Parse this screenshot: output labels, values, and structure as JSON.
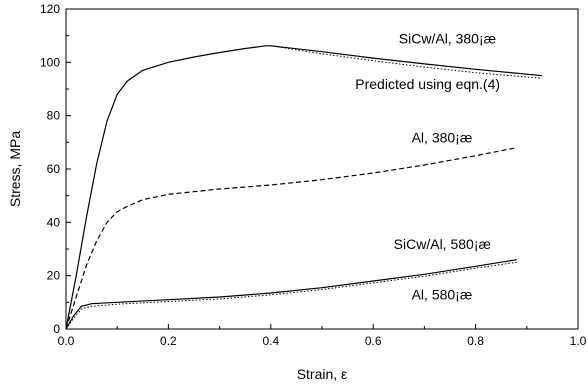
{
  "chart_data": {
    "type": "line",
    "title": "",
    "xlabel": "Strain, ε",
    "ylabel": "Stress, MPa",
    "xlim": [
      0.0,
      1.0
    ],
    "ylim": [
      0,
      120
    ],
    "xticks": [
      0.0,
      0.2,
      0.4,
      0.6,
      0.8,
      1.0
    ],
    "xtick_labels": [
      "0.0",
      "0.2",
      "0.4",
      "0.6",
      "0.8",
      "1.0"
    ],
    "yticks": [
      0,
      20,
      40,
      60,
      80,
      100,
      120
    ],
    "ytick_labels": [
      "0",
      "20",
      "40",
      "60",
      "80",
      "100",
      "120"
    ],
    "grid": false,
    "series": [
      {
        "style": "solid",
        "x": [
          0.0,
          0.02,
          0.04,
          0.06,
          0.08,
          0.1,
          0.12,
          0.15,
          0.2,
          0.25,
          0.3,
          0.35,
          0.39,
          0.4,
          0.5,
          0.6,
          0.7,
          0.8,
          0.93
        ],
        "y": [
          0,
          20,
          42,
          62,
          78,
          88,
          93,
          97,
          100,
          102,
          103.7,
          105.2,
          106.2,
          106.2,
          104,
          101.6,
          99.4,
          97.4,
          95
        ]
      },
      {
        "style": "dotted",
        "x": [
          0.4,
          0.5,
          0.6,
          0.7,
          0.8,
          0.93
        ],
        "y": [
          106.2,
          103.2,
          100.6,
          98.2,
          96.1,
          94
        ]
      },
      {
        "style": "dashed",
        "x": [
          0.0,
          0.02,
          0.04,
          0.06,
          0.08,
          0.1,
          0.12,
          0.15,
          0.2,
          0.3,
          0.4,
          0.5,
          0.6,
          0.7,
          0.8,
          0.88
        ],
        "y": [
          0,
          12,
          24,
          33,
          40,
          44,
          46,
          48.5,
          50.5,
          52.5,
          54,
          56,
          58.5,
          61.5,
          65,
          68
        ]
      },
      {
        "style": "solid",
        "x": [
          0.0,
          0.015,
          0.03,
          0.05,
          0.1,
          0.2,
          0.3,
          0.4,
          0.5,
          0.6,
          0.7,
          0.8,
          0.88
        ],
        "y": [
          0,
          5,
          8.5,
          9.5,
          10,
          11,
          12,
          13.5,
          15.5,
          18,
          20.5,
          23.5,
          26
        ]
      },
      {
        "style": "dotted",
        "x": [
          0.0,
          0.015,
          0.03,
          0.05,
          0.1,
          0.2,
          0.3,
          0.4,
          0.5,
          0.6,
          0.7,
          0.8,
          0.88
        ],
        "y": [
          0,
          4,
          7.5,
          8.5,
          9.3,
          10.3,
          11.3,
          12.8,
          14.8,
          17.3,
          19.8,
          22.8,
          25
        ]
      }
    ],
    "annotations": [
      {
        "text": "SiCw/Al, 380¡æ",
        "x": 0.65,
        "y": 107
      },
      {
        "text": "Predicted using eqn.(4)",
        "x": 0.565,
        "y": 90
      },
      {
        "text": "Al, 380¡æ",
        "x": 0.675,
        "y": 70
      },
      {
        "text": "SiCw/Al, 580¡æ",
        "x": 0.64,
        "y": 30
      },
      {
        "text": "Al, 580¡æ",
        "x": 0.675,
        "y": 11
      }
    ]
  }
}
